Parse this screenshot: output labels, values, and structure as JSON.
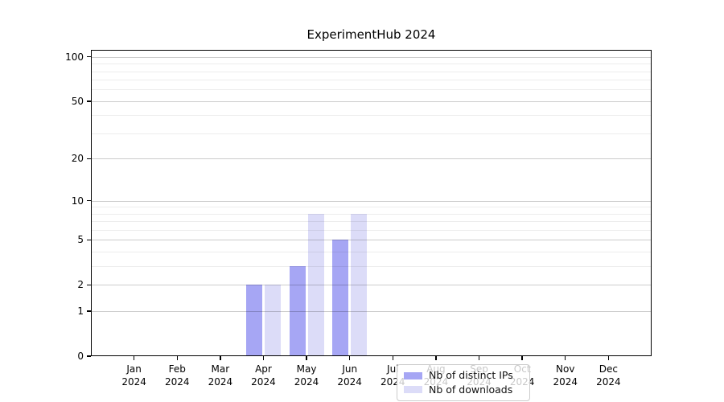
{
  "chart_data": {
    "type": "bar",
    "title": "ExperimentHub 2024",
    "categories": [
      "Jan",
      "Feb",
      "Mar",
      "Apr",
      "May",
      "Jun",
      "Jul",
      "Aug",
      "Sep",
      "Oct",
      "Nov",
      "Dec"
    ],
    "category_year": "2024",
    "series": [
      {
        "name": "Nb of distinct IPs",
        "color": "#a6a6f4",
        "values": [
          0,
          0,
          0,
          2,
          3,
          5,
          0,
          0,
          0,
          0,
          0,
          0
        ]
      },
      {
        "name": "Nb of downloads",
        "color": "#dcdcf8",
        "values": [
          0,
          0,
          0,
          2,
          8,
          8,
          0,
          0,
          0,
          0,
          0,
          0
        ]
      }
    ],
    "yscale": "log1p",
    "ylim": [
      0,
      110
    ],
    "yticks": [
      0,
      1,
      2,
      5,
      10,
      20,
      50,
      100
    ],
    "yticks_minor": [
      3,
      4,
      6,
      7,
      8,
      9,
      30,
      40,
      60,
      70,
      80,
      90
    ],
    "xlabel": "",
    "ylabel": "",
    "grid": "horizontal",
    "legend_position": "lower-center-inside",
    "axis_color": "#000000",
    "background_color": "#ffffff"
  }
}
